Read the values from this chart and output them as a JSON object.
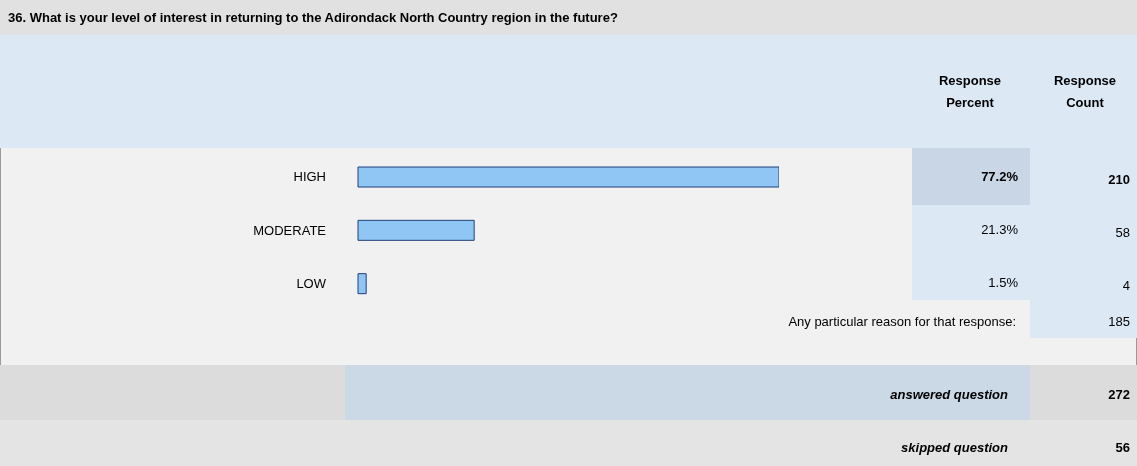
{
  "chart_data": {
    "type": "bar",
    "orientation": "horizontal",
    "title": "36. What is your level of interest in returning to the Adirondack North Country region in the future?",
    "categories": [
      "HIGH",
      "MODERATE",
      "LOW"
    ],
    "values": [
      77.2,
      21.3,
      1.5
    ],
    "color": "#8fc6f4",
    "value_labels": [
      "77.2%",
      "21.3%",
      "1.5%"
    ],
    "annotations": [
      "Response Percent",
      "Response Count",
      "210",
      "58",
      "4",
      "Any particular reason for that response:",
      "185",
      "answered question",
      "272",
      "skipped question",
      "56"
    ]
  }
}
